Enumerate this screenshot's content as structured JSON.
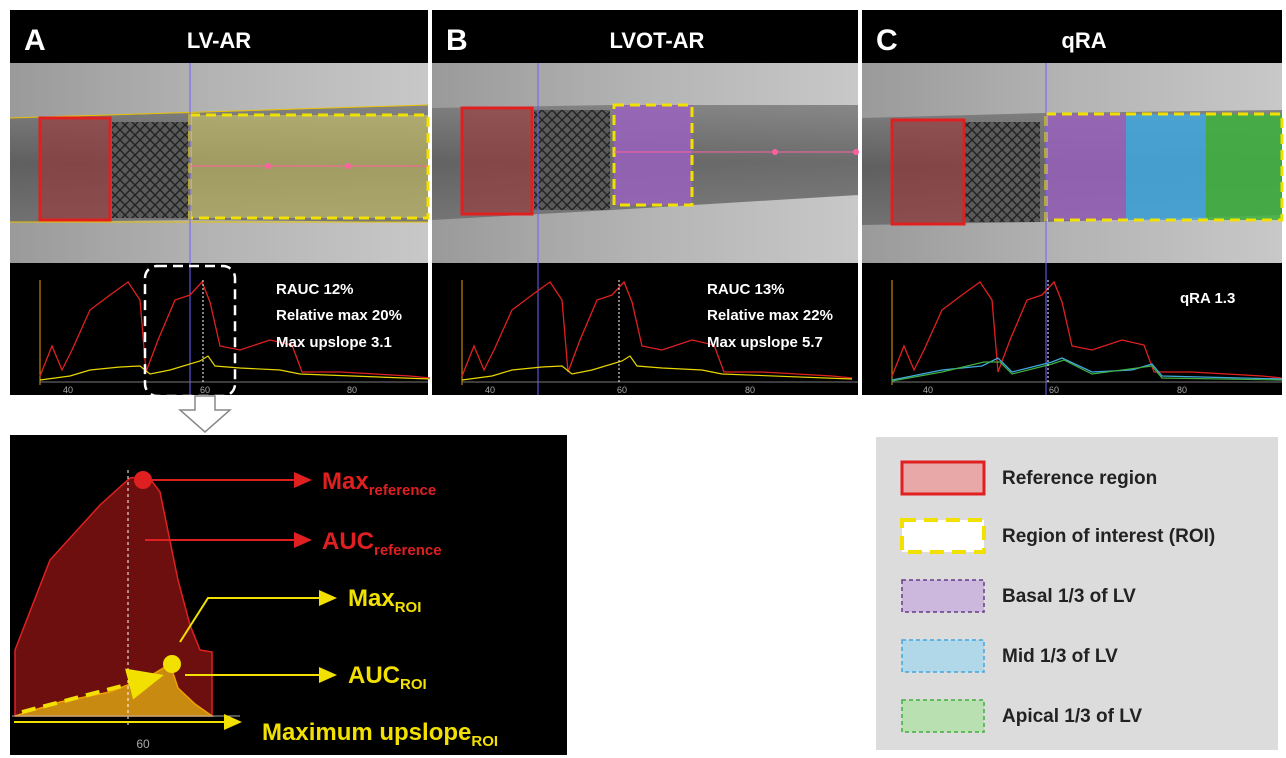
{
  "panels": [
    {
      "letter": "A",
      "title": "LV-AR",
      "stats": [
        "RAUC 12%",
        "Relative max 20%",
        "Max upslope 3.1"
      ],
      "axis_ticks": [
        "40",
        "60",
        "80"
      ]
    },
    {
      "letter": "B",
      "title": "LVOT-AR",
      "stats": [
        "RAUC 13%",
        "Relative max 22%",
        "Max upslope 5.7"
      ],
      "axis_ticks": [
        "40",
        "60",
        "80"
      ]
    },
    {
      "letter": "C",
      "title": "qRA",
      "stats": [
        "qRA 1.3"
      ],
      "axis_ticks": [
        "40",
        "60",
        "80"
      ]
    }
  ],
  "zoom": {
    "labels": [
      {
        "main": "Max",
        "sub": "reference"
      },
      {
        "main": "AUC",
        "sub": "reference"
      },
      {
        "main": "Max",
        "sub": "ROI"
      },
      {
        "main": "AUC",
        "sub": "ROI"
      },
      {
        "main": "Maximum upslope",
        "sub": "ROI"
      }
    ],
    "axis_tick": "60"
  },
  "legend": [
    "Reference region",
    "Region of interest (ROI)",
    "Basal 1/3 of LV",
    "Mid 1/3 of LV",
    "Apical 1/3 of LV"
  ]
}
